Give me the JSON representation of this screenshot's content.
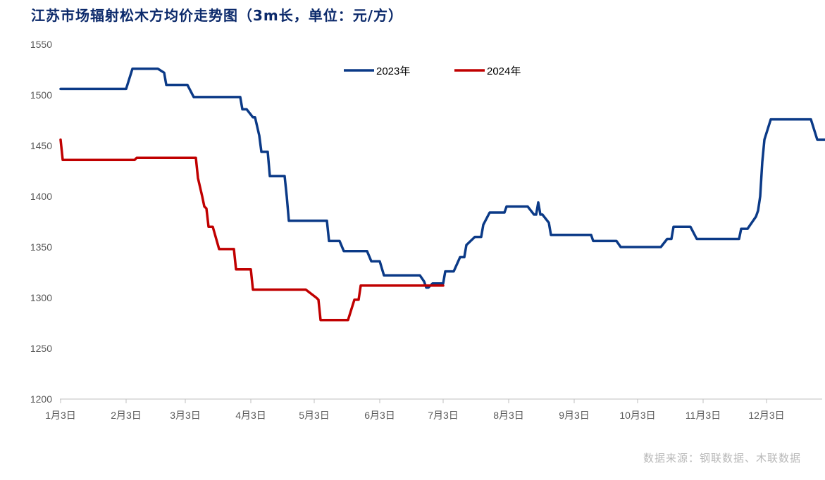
{
  "title": "江苏市场辐射松木方均价走势图（3m长，单位：元/方）",
  "source": "数据来源：钢联数据、木联数据",
  "chart_data": {
    "type": "line",
    "title": "江苏市场辐射松木方均价走势图（3m长，单位：元/方）",
    "xlabel": "",
    "ylabel": "",
    "ylim": [
      1200,
      1550
    ],
    "yticks": [
      1200,
      1250,
      1300,
      1350,
      1400,
      1450,
      1500,
      1550
    ],
    "xlim": [
      1,
      362
    ],
    "xticks": [
      {
        "label": "1月3日",
        "day": 3
      },
      {
        "label": "2月3日",
        "day": 34
      },
      {
        "label": "3月3日",
        "day": 62
      },
      {
        "label": "4月3日",
        "day": 93
      },
      {
        "label": "5月3日",
        "day": 123
      },
      {
        "label": "6月3日",
        "day": 154
      },
      {
        "label": "7月3日",
        "day": 184
      },
      {
        "label": "8月3日",
        "day": 215
      },
      {
        "label": "9月3日",
        "day": 246
      },
      {
        "label": "10月3日",
        "day": 276
      },
      {
        "label": "11月3日",
        "day": 307
      },
      {
        "label": "12月3日",
        "day": 337
      }
    ],
    "grid": false,
    "legend": "top-center",
    "series": [
      {
        "name": "2023年",
        "color": "#0b3a87",
        "points": [
          [
            3,
            1506
          ],
          [
            34,
            1506
          ],
          [
            37,
            1526
          ],
          [
            49,
            1526
          ],
          [
            52,
            1522
          ],
          [
            53,
            1510
          ],
          [
            63,
            1510
          ],
          [
            66,
            1498
          ],
          [
            88,
            1498
          ],
          [
            89,
            1486
          ],
          [
            91,
            1486
          ],
          [
            94,
            1478
          ],
          [
            95,
            1478
          ],
          [
            97,
            1460
          ],
          [
            98,
            1444
          ],
          [
            101,
            1444
          ],
          [
            102,
            1420
          ],
          [
            109,
            1420
          ],
          [
            110,
            1400
          ],
          [
            111,
            1376
          ],
          [
            129,
            1376
          ],
          [
            130,
            1356
          ],
          [
            135,
            1356
          ],
          [
            137,
            1346
          ],
          [
            148,
            1346
          ],
          [
            150,
            1336
          ],
          [
            154,
            1336
          ],
          [
            156,
            1322
          ],
          [
            173,
            1322
          ],
          [
            175,
            1316
          ],
          [
            176,
            1310
          ],
          [
            177,
            1310
          ],
          [
            179,
            1314
          ],
          [
            184,
            1314
          ],
          [
            185,
            1326
          ],
          [
            189,
            1326
          ],
          [
            192,
            1340
          ],
          [
            194,
            1340
          ],
          [
            195,
            1352
          ],
          [
            199,
            1360
          ],
          [
            202,
            1360
          ],
          [
            203,
            1372
          ],
          [
            206,
            1384
          ],
          [
            213,
            1384
          ],
          [
            214,
            1390
          ],
          [
            224,
            1390
          ],
          [
            227,
            1382
          ],
          [
            228,
            1382
          ],
          [
            229,
            1394
          ],
          [
            230,
            1382
          ],
          [
            231,
            1382
          ],
          [
            234,
            1374
          ],
          [
            235,
            1362
          ],
          [
            254,
            1362
          ],
          [
            255,
            1356
          ],
          [
            266,
            1356
          ],
          [
            268,
            1350
          ],
          [
            287,
            1350
          ],
          [
            290,
            1358
          ],
          [
            292,
            1358
          ],
          [
            293,
            1370
          ],
          [
            301,
            1370
          ],
          [
            304,
            1358
          ],
          [
            324,
            1358
          ],
          [
            325,
            1368
          ],
          [
            328,
            1368
          ],
          [
            332,
            1380
          ],
          [
            333,
            1386
          ],
          [
            334,
            1400
          ],
          [
            335,
            1434
          ],
          [
            336,
            1456
          ],
          [
            339,
            1476
          ],
          [
            358,
            1476
          ],
          [
            361,
            1456
          ],
          [
            365,
            1456
          ]
        ]
      },
      {
        "name": "2024年",
        "color": "#c00000",
        "points": [
          [
            3,
            1456
          ],
          [
            4,
            1436
          ],
          [
            38,
            1436
          ],
          [
            39,
            1438
          ],
          [
            67,
            1438
          ],
          [
            68,
            1418
          ],
          [
            70,
            1400
          ],
          [
            71,
            1390
          ],
          [
            72,
            1388
          ],
          [
            73,
            1370
          ],
          [
            75,
            1370
          ],
          [
            78,
            1348
          ],
          [
            85,
            1348
          ],
          [
            86,
            1328
          ],
          [
            93,
            1328
          ],
          [
            94,
            1308
          ],
          [
            119,
            1308
          ],
          [
            124,
            1300
          ],
          [
            125,
            1298
          ],
          [
            126,
            1278
          ],
          [
            139,
            1278
          ],
          [
            142,
            1298
          ],
          [
            144,
            1298
          ],
          [
            145,
            1312
          ],
          [
            184,
            1312
          ]
        ]
      }
    ]
  },
  "legend": {
    "items": [
      {
        "label": "2023年",
        "color": "#0b3a87"
      },
      {
        "label": "2024年",
        "color": "#c00000"
      }
    ]
  }
}
